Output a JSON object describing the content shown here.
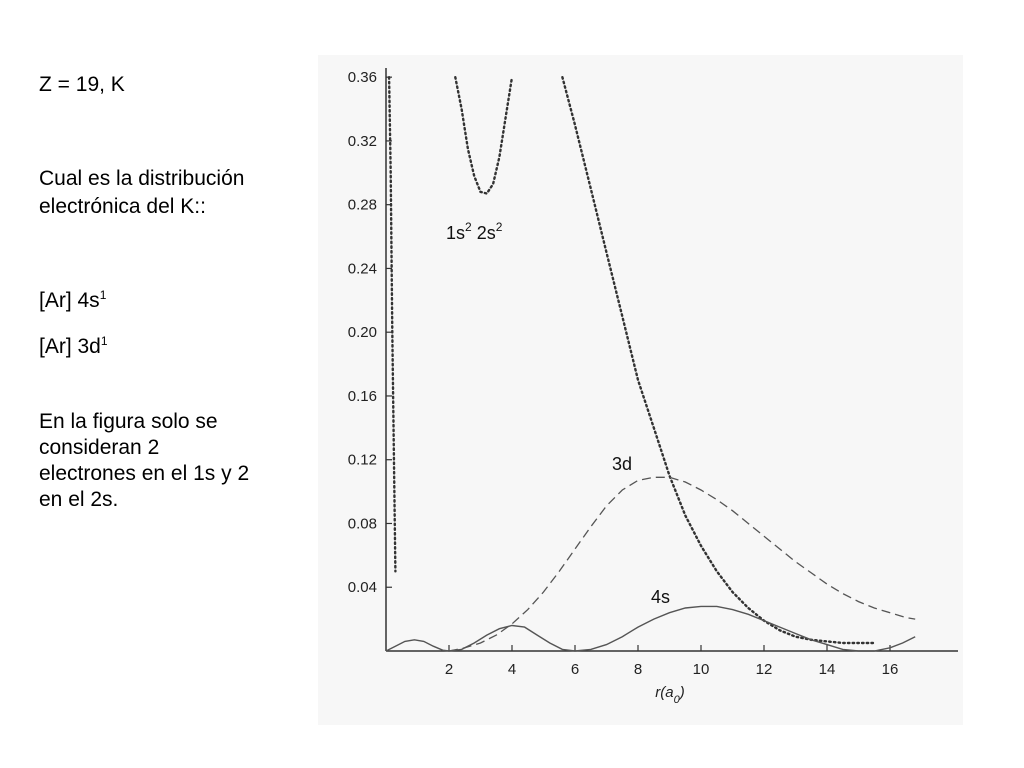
{
  "slide": {
    "header": "Z = 19, K",
    "question_line1": "Cual es la distribución",
    "question_line2": "electrónica del  K::",
    "option1_base": "[Ar] 4s",
    "option1_sup": "1",
    "option2_base": "[Ar] 3d",
    "option2_sup": "1",
    "note_line1": "En la figura solo se",
    "note_line2": "consideran 2",
    "note_line3": "electrones en el 1s y 2",
    "note_line4": "en el 2s."
  },
  "chart_data": {
    "type": "line",
    "title": "",
    "xlabel": "r(a0)",
    "ylabel": "",
    "xlim": [
      0,
      17.5
    ],
    "ylim": [
      0,
      0.36
    ],
    "x_ticks": [
      2,
      4,
      6,
      8,
      10,
      12,
      14,
      16
    ],
    "y_ticks": [
      0.04,
      0.08,
      0.12,
      0.16,
      0.2,
      0.24,
      0.28,
      0.32,
      0.36
    ],
    "x_tick_labels": [
      "2",
      "4",
      "6",
      "8",
      "10",
      "12",
      "14",
      "16"
    ],
    "y_tick_labels": [
      "0.04",
      "0.08",
      "0.12",
      "0.16",
      "0.20",
      "0.24",
      "0.28",
      "0.32",
      "0.36"
    ],
    "grid": false,
    "series": [
      {
        "name": "1s2 2s2",
        "label_base": "1s",
        "label_sup1": "2",
        "label_mid": " 2s",
        "label_sup2": "2",
        "style": "dotted",
        "color": "#333333",
        "segments": [
          {
            "x": [
              0.1,
              0.15,
              0.2,
              0.3
            ],
            "y": [
              0.36,
              0.3,
              0.2,
              0.05
            ]
          },
          {
            "x": [
              2.2,
              2.4,
              2.6,
              2.8,
              3.0,
              3.2,
              3.4,
              3.6,
              3.8,
              4.0
            ],
            "y": [
              0.36,
              0.34,
              0.315,
              0.298,
              0.288,
              0.287,
              0.293,
              0.31,
              0.335,
              0.36
            ]
          },
          {
            "x": [
              5.6,
              6.0,
              6.5,
              7.0,
              7.5,
              8.0,
              8.5,
              9.0,
              9.5,
              10.0,
              10.5,
              11.0,
              11.5,
              12.0,
              12.5,
              13.0,
              13.5,
              14.0,
              14.5,
              15.0,
              15.5
            ],
            "y": [
              0.36,
              0.33,
              0.29,
              0.25,
              0.21,
              0.17,
              0.14,
              0.11,
              0.085,
              0.066,
              0.05,
              0.037,
              0.027,
              0.019,
              0.013,
              0.009,
              0.007,
              0.006,
              0.005,
              0.005,
              0.005
            ]
          }
        ]
      },
      {
        "name": "3d",
        "label_base": "3d",
        "style": "dashed",
        "color": "#555555",
        "x": [
          2.0,
          2.5,
          3.0,
          3.5,
          4.0,
          4.5,
          5.0,
          5.5,
          6.0,
          6.5,
          7.0,
          7.5,
          8.0,
          8.5,
          9.0,
          9.5,
          10.0,
          10.5,
          11.0,
          11.5,
          12.0,
          12.5,
          13.0,
          13.5,
          14.0,
          14.5,
          15.0,
          15.5,
          16.0,
          16.5,
          16.8
        ],
        "y": [
          0.0,
          0.002,
          0.005,
          0.01,
          0.017,
          0.026,
          0.037,
          0.05,
          0.064,
          0.078,
          0.091,
          0.101,
          0.107,
          0.109,
          0.109,
          0.106,
          0.101,
          0.095,
          0.088,
          0.08,
          0.072,
          0.064,
          0.056,
          0.049,
          0.042,
          0.036,
          0.031,
          0.027,
          0.024,
          0.021,
          0.02
        ]
      },
      {
        "name": "4s",
        "label_base": "4s",
        "style": "solid",
        "color": "#555555",
        "x": [
          0.0,
          0.3,
          0.6,
          0.9,
          1.2,
          1.5,
          1.8,
          2.0,
          2.4,
          2.8,
          3.2,
          3.6,
          4.0,
          4.4,
          4.8,
          5.2,
          5.6,
          6.0,
          6.5,
          7.0,
          7.5,
          8.0,
          8.5,
          9.0,
          9.5,
          10.0,
          10.5,
          11.0,
          11.5,
          12.0,
          12.5,
          13.0,
          13.5,
          14.0,
          14.5,
          15.0,
          15.5,
          16.0,
          16.4,
          16.8
        ],
        "y": [
          0.0,
          0.003,
          0.006,
          0.007,
          0.006,
          0.003,
          0.0005,
          0.0,
          0.001,
          0.005,
          0.01,
          0.014,
          0.016,
          0.015,
          0.01,
          0.005,
          0.001,
          0.0,
          0.001,
          0.004,
          0.009,
          0.015,
          0.02,
          0.024,
          0.027,
          0.028,
          0.028,
          0.026,
          0.023,
          0.019,
          0.015,
          0.011,
          0.007,
          0.004,
          0.001,
          0.0,
          0.0,
          0.002,
          0.005,
          0.009
        ]
      }
    ]
  }
}
